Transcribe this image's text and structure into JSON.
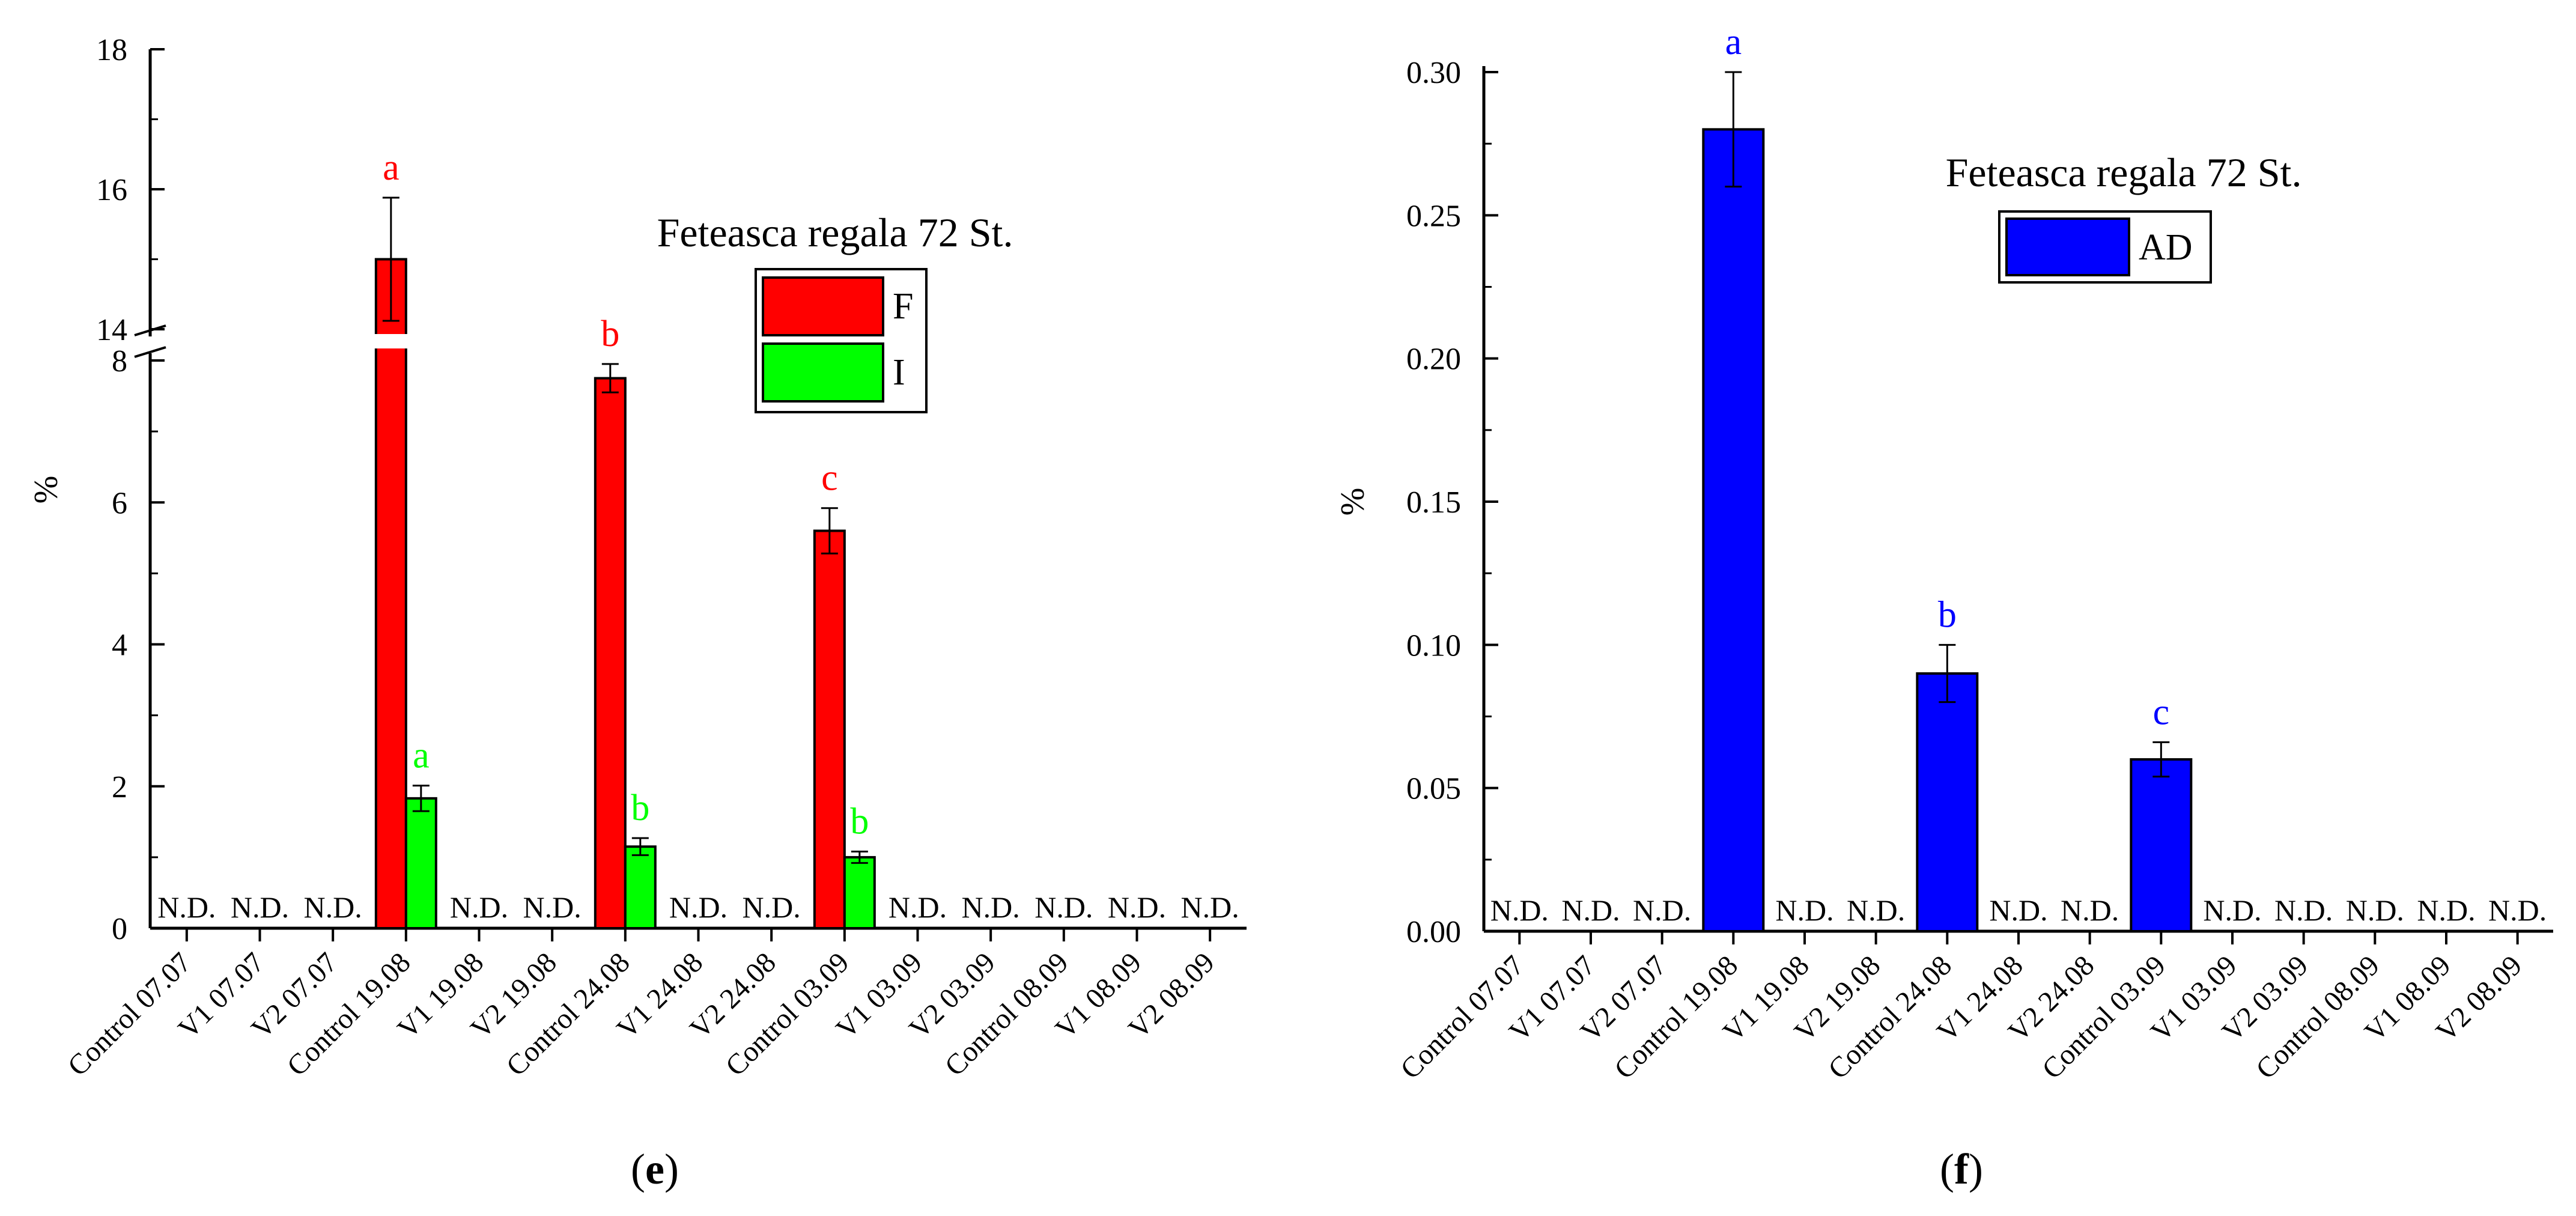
{
  "colors": {
    "axis": "#000000",
    "bar_f": "#ff0000",
    "bar_i": "#00ff00",
    "bar_ad": "#0000ff",
    "letter_f": "#ff0000",
    "letter_i": "#00ff00",
    "letter_ad": "#0000ff"
  },
  "chart_data": [
    {
      "type": "bar",
      "panel_label_letter": "e",
      "title": "Feteasca regala 72 St.",
      "ylabel": "%",
      "xlabel": "",
      "categories": [
        "Control 07.07",
        "V1 07.07",
        "V2 07.07",
        "Control 19.08",
        "V1 19.08",
        "V2 19.08",
        "Control 24.08",
        "V1 24.08",
        "V2 24.08",
        "Control 03.09",
        "V1 03.09",
        "V2 03.09",
        "Control 08.09",
        "V1 08.09",
        "V2 08.09"
      ],
      "ylim_lower": [
        0,
        8
      ],
      "ylim_upper": [
        14,
        18
      ],
      "yticks_lower": [
        "0",
        "2",
        "4",
        "6",
        "8"
      ],
      "yticks_upper": [
        "14",
        "16",
        "18"
      ],
      "axis_break": "between 8 and 14",
      "legend_position": "upper-middle",
      "not_detected_label": "N.D.",
      "not_detected_categories": [
        0,
        1,
        2,
        4,
        5,
        7,
        8,
        10,
        11,
        12,
        13,
        14
      ],
      "series": [
        {
          "name": "F",
          "color_key": "bar_f",
          "points": [
            {
              "category_index": 3,
              "value": 15.0,
              "error": 0.88,
              "letter": "a"
            },
            {
              "category_index": 6,
              "value": 7.75,
              "error": 0.2,
              "letter": "b"
            },
            {
              "category_index": 9,
              "value": 5.6,
              "error": 0.32,
              "letter": "c"
            }
          ]
        },
        {
          "name": "I",
          "color_key": "bar_i",
          "points": [
            {
              "category_index": 3,
              "value": 1.83,
              "error": 0.18,
              "letter": "a"
            },
            {
              "category_index": 6,
              "value": 1.15,
              "error": 0.12,
              "letter": "b"
            },
            {
              "category_index": 9,
              "value": 1.0,
              "error": 0.08,
              "letter": "b"
            }
          ]
        }
      ]
    },
    {
      "type": "bar",
      "panel_label_letter": "f",
      "title": "Feteasca regala 72 St.",
      "ylabel": "%",
      "xlabel": "",
      "categories": [
        "Control 07.07",
        "V1 07.07",
        "V2 07.07",
        "Control 19.08",
        "V1 19.08",
        "V2 19.08",
        "Control 24.08",
        "V1 24.08",
        "V2 24.08",
        "Control 03.09",
        "V1 03.09",
        "V2 03.09",
        "Control 08.09",
        "V1 08.09",
        "V2 08.09"
      ],
      "ylim": [
        0,
        0.3
      ],
      "yticks": [
        "0.00",
        "0.05",
        "0.10",
        "0.15",
        "0.20",
        "0.25",
        "0.30"
      ],
      "legend_position": "upper-middle",
      "not_detected_label": "N.D.",
      "not_detected_categories": [
        0,
        1,
        2,
        4,
        5,
        7,
        8,
        10,
        11,
        12,
        13,
        14
      ],
      "series": [
        {
          "name": "AD",
          "color_key": "bar_ad",
          "points": [
            {
              "category_index": 3,
              "value": 0.28,
              "error": 0.02,
              "letter": "a"
            },
            {
              "category_index": 6,
              "value": 0.09,
              "error": 0.01,
              "letter": "b"
            },
            {
              "category_index": 9,
              "value": 0.06,
              "error": 0.006,
              "letter": "c"
            }
          ]
        }
      ]
    }
  ]
}
